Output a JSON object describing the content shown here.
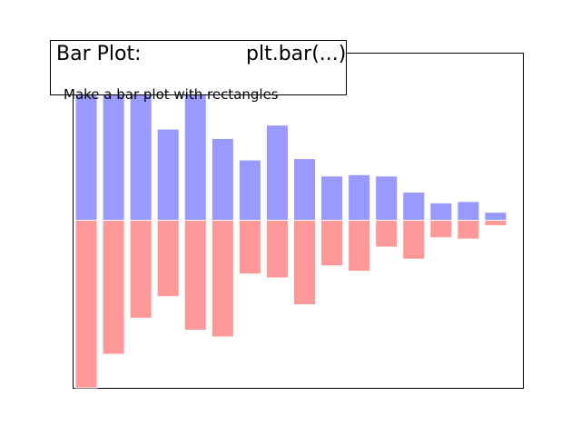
{
  "header": {
    "title": "Bar Plot:",
    "code": "plt.bar(...)",
    "subtitle": "Make a bar plot with rectangles"
  },
  "colors": {
    "positive_bars": "#9999ff",
    "negative_bars": "#ff9999",
    "axes_edge": "#000000",
    "background": "#ffffff"
  },
  "chart_data": {
    "type": "bar",
    "title": "",
    "xlabel": "",
    "ylabel": "",
    "xticks": "hidden",
    "yticks": "hidden",
    "grid": false,
    "x": [
      0,
      1,
      2,
      3,
      4,
      5,
      6,
      7,
      8,
      9,
      10,
      11,
      12,
      13,
      14,
      15
    ],
    "series": [
      {
        "values": [
          1.0,
          1.0,
          1.0,
          0.68,
          1.0,
          0.61,
          0.45,
          0.71,
          0.46,
          0.33,
          0.34,
          0.33,
          0.21,
          0.13,
          0.14,
          0.06
        ]
      },
      {
        "values": [
          -1.25,
          -1.0,
          -0.73,
          -0.57,
          -0.82,
          -0.87,
          -0.4,
          -0.43,
          -0.63,
          -0.34,
          -0.38,
          -0.2,
          -0.29,
          -0.13,
          -0.14,
          -0.04
        ]
      }
    ],
    "xlim": [
      -0.5,
      16
    ],
    "ylim": [
      -1.25,
      1.25
    ]
  }
}
